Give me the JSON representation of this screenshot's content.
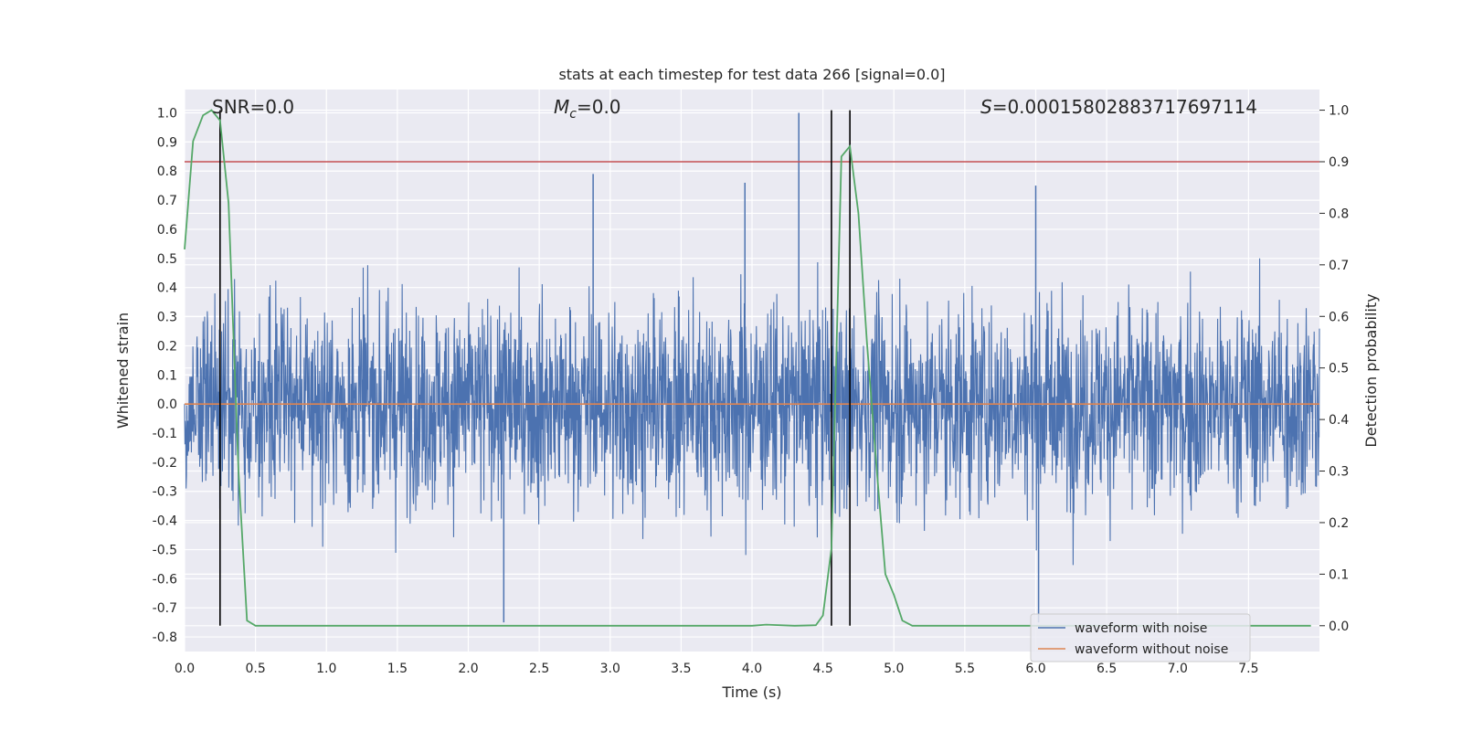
{
  "chart_data": {
    "type": "line",
    "title": "stats at each timestep for test data 266 [signal=0.0]",
    "xlabel": "Time (s)",
    "ylabel_left": "Whitened strain",
    "ylabel_right": "Detection probability",
    "xlim": [
      0.0,
      8.0
    ],
    "ylim_left": [
      -0.85,
      1.08
    ],
    "ylim_right": [
      -0.05,
      1.04
    ],
    "x_ticks": [
      "0.0",
      "0.5",
      "1.0",
      "1.5",
      "2.0",
      "2.5",
      "3.0",
      "3.5",
      "4.0",
      "4.5",
      "5.0",
      "5.5",
      "6.0",
      "6.5",
      "7.0",
      "7.5"
    ],
    "y_ticks_left": [
      "1.0",
      "0.9",
      "0.8",
      "0.7",
      "0.6",
      "0.5",
      "0.4",
      "0.3",
      "0.2",
      "0.1",
      "0.0",
      "-0.1",
      "-0.2",
      "-0.3",
      "-0.4",
      "-0.5",
      "-0.6",
      "-0.7",
      "-0.8"
    ],
    "y_ticks_right": [
      "1.0",
      "0.9",
      "0.8",
      "0.7",
      "0.6",
      "0.5",
      "0.4",
      "0.3",
      "0.2",
      "0.1",
      "0.0"
    ],
    "grid": true,
    "legend_position": "bottom-right",
    "annotations": {
      "snr": "SNR=0.0",
      "mc_symbol": "M",
      "mc_sub": "c",
      "mc_value": "=0.0",
      "s_symbol": "S",
      "s_value": "=0.00015802883717697114"
    },
    "series": [
      {
        "name": "waveform with noise",
        "color": "#4c72b0",
        "description": "dense noise, roughly uniform envelope between about -0.5 and +0.5",
        "envelope_typical": [
          -0.45,
          0.45
        ],
        "peaks": [
          {
            "x": 4.33,
            "y": 1.0
          },
          {
            "x": 2.88,
            "y": 0.79
          },
          {
            "x": 3.95,
            "y": 0.76
          },
          {
            "x": 6.02,
            "y": -0.75
          },
          {
            "x": 2.25,
            "y": -0.75
          },
          {
            "x": 6.0,
            "y": 0.75
          }
        ]
      },
      {
        "name": "waveform without noise",
        "color": "#dd8452",
        "x": [
          0.0,
          8.0
        ],
        "y": [
          0.0,
          0.0
        ]
      },
      {
        "name": "detection probability",
        "color": "#55a868",
        "axis": "right",
        "x": [
          0.0,
          0.06,
          0.13,
          0.19,
          0.25,
          0.31,
          0.38,
          0.44,
          0.5,
          1.0,
          2.0,
          3.0,
          4.0,
          4.1,
          4.3,
          4.45,
          4.5,
          4.56,
          4.63,
          4.69,
          4.75,
          4.81,
          4.88,
          4.94,
          5.0,
          5.06,
          5.13,
          5.5,
          6.0,
          7.0,
          7.94
        ],
        "y": [
          0.73,
          0.94,
          0.99,
          1.0,
          0.98,
          0.82,
          0.3,
          0.01,
          0.0,
          0.0,
          0.0,
          0.0,
          0.0,
          0.002,
          0.0,
          0.001,
          0.02,
          0.15,
          0.91,
          0.93,
          0.8,
          0.55,
          0.3,
          0.1,
          0.06,
          0.01,
          0.0,
          0.0,
          0.0,
          0.0,
          0.0
        ]
      },
      {
        "name": "threshold",
        "color": "#c44e52",
        "axis": "right",
        "y": 0.9
      }
    ],
    "vertical_markers_x": [
      0.25,
      4.56,
      4.69
    ],
    "legend": [
      "waveform with noise",
      "waveform without noise"
    ]
  }
}
